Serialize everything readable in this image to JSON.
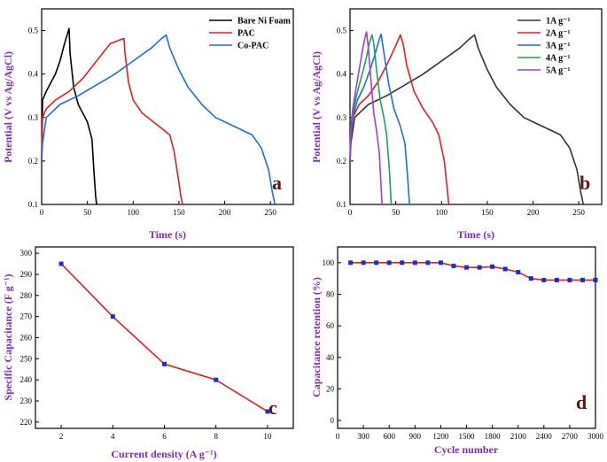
{
  "chart_data": [
    {
      "id": "a",
      "type": "line",
      "panel_label": "a",
      "xlabel": "Time (s)",
      "ylabel": "Potential (V vs Ag/AgCl)",
      "xlim": [
        0,
        275
      ],
      "ylim": [
        0.1,
        0.55
      ],
      "xticks": [
        0,
        50,
        100,
        150,
        200,
        250
      ],
      "yticks": [
        0.1,
        0.2,
        0.3,
        0.4,
        0.5
      ],
      "xtick_labels": [
        "0",
        "50",
        "100",
        "150",
        "200",
        "250"
      ],
      "ytick_labels": [
        "0.1",
        "0.2",
        "0.3",
        "0.4",
        "0.5"
      ],
      "legend_position": "top-right",
      "series": [
        {
          "name": "Bare Ni Foam",
          "color": "#000000",
          "x": [
            0,
            1,
            5,
            10,
            15,
            20,
            25,
            30,
            31,
            35,
            40,
            45,
            50,
            55,
            57,
            59,
            60
          ],
          "y": [
            0.2,
            0.34,
            0.36,
            0.38,
            0.4,
            0.43,
            0.47,
            0.505,
            0.45,
            0.37,
            0.33,
            0.31,
            0.29,
            0.25,
            0.18,
            0.12,
            0.1
          ]
        },
        {
          "name": "PAC",
          "color": "#e02020",
          "x": [
            0,
            1,
            5,
            15,
            30,
            45,
            60,
            75,
            90,
            91,
            95,
            100,
            110,
            125,
            140,
            145,
            150,
            152,
            154
          ],
          "y": [
            0.2,
            0.3,
            0.32,
            0.34,
            0.36,
            0.39,
            0.43,
            0.47,
            0.482,
            0.45,
            0.38,
            0.34,
            0.31,
            0.285,
            0.26,
            0.22,
            0.15,
            0.12,
            0.1
          ]
        },
        {
          "name": "Co-PAC",
          "color": "#1f6fd0",
          "x": [
            0,
            1,
            5,
            20,
            40,
            60,
            80,
            100,
            120,
            130,
            136,
            140,
            150,
            160,
            175,
            190,
            210,
            230,
            240,
            248,
            252,
            255
          ],
          "y": [
            0.2,
            0.24,
            0.3,
            0.33,
            0.35,
            0.375,
            0.4,
            0.43,
            0.46,
            0.48,
            0.49,
            0.46,
            0.41,
            0.37,
            0.33,
            0.3,
            0.28,
            0.26,
            0.23,
            0.18,
            0.13,
            0.1
          ]
        }
      ]
    },
    {
      "id": "b",
      "type": "line",
      "panel_label": "b",
      "xlabel": "Time (s)",
      "ylabel": "Potential (V vs Ag/AgCl)",
      "xlim": [
        0,
        275
      ],
      "ylim": [
        0.1,
        0.55
      ],
      "xticks": [
        0,
        50,
        100,
        150,
        200,
        250
      ],
      "yticks": [
        0.1,
        0.2,
        0.3,
        0.4,
        0.5
      ],
      "xtick_labels": [
        "0",
        "50",
        "100",
        "150",
        "200",
        "250"
      ],
      "ytick_labels": [
        "0.1",
        "0.2",
        "0.3",
        "0.4",
        "0.5"
      ],
      "legend_position": "top-right",
      "series": [
        {
          "name": "1A g⁻¹",
          "color": "#333333",
          "x": [
            0,
            1,
            5,
            20,
            40,
            60,
            80,
            100,
            120,
            130,
            136,
            140,
            150,
            160,
            175,
            190,
            210,
            230,
            240,
            248,
            252,
            255
          ],
          "y": [
            0.2,
            0.24,
            0.3,
            0.33,
            0.35,
            0.375,
            0.4,
            0.43,
            0.46,
            0.48,
            0.49,
            0.46,
            0.41,
            0.37,
            0.33,
            0.3,
            0.28,
            0.26,
            0.23,
            0.18,
            0.13,
            0.1
          ]
        },
        {
          "name": "2A g⁻¹",
          "color": "#e02020",
          "x": [
            0,
            1,
            3,
            10,
            20,
            30,
            40,
            50,
            55,
            58,
            62,
            70,
            80,
            90,
            97,
            103,
            106,
            108
          ],
          "y": [
            0.2,
            0.25,
            0.3,
            0.33,
            0.35,
            0.38,
            0.42,
            0.465,
            0.49,
            0.47,
            0.42,
            0.36,
            0.32,
            0.29,
            0.26,
            0.2,
            0.14,
            0.1
          ]
        },
        {
          "name": "3A g⁻¹",
          "color": "#1f6fd0",
          "x": [
            0,
            1,
            3,
            8,
            15,
            22,
            28,
            32,
            34,
            37,
            42,
            48,
            55,
            60,
            63,
            65
          ],
          "y": [
            0.2,
            0.26,
            0.3,
            0.34,
            0.37,
            0.41,
            0.45,
            0.48,
            0.492,
            0.45,
            0.38,
            0.32,
            0.28,
            0.24,
            0.16,
            0.1
          ]
        },
        {
          "name": "4A g⁻¹",
          "color": "#1fa05a",
          "x": [
            0,
            1,
            3,
            7,
            12,
            17,
            21,
            24,
            26,
            29,
            33,
            37,
            40,
            43,
            45
          ],
          "y": [
            0.2,
            0.27,
            0.31,
            0.35,
            0.39,
            0.43,
            0.47,
            0.49,
            0.47,
            0.41,
            0.34,
            0.3,
            0.26,
            0.18,
            0.1
          ]
        },
        {
          "name": "5A g⁻¹",
          "color": "#a040d0",
          "x": [
            0,
            1,
            3,
            6,
            10,
            14,
            17,
            18,
            20,
            23,
            26,
            29,
            32,
            34,
            35
          ],
          "y": [
            0.2,
            0.28,
            0.32,
            0.36,
            0.41,
            0.46,
            0.49,
            0.497,
            0.46,
            0.38,
            0.31,
            0.27,
            0.22,
            0.14,
            0.1
          ]
        }
      ]
    },
    {
      "id": "c",
      "type": "line",
      "panel_label": "c",
      "xlabel": "Current density (A g⁻¹)",
      "ylabel": "Specific Capacitance (F g⁻¹)",
      "xlim": [
        1,
        11
      ],
      "ylim": [
        217,
        303
      ],
      "xticks": [
        2,
        4,
        6,
        8,
        10
      ],
      "yticks": [
        220,
        230,
        240,
        250,
        260,
        270,
        280,
        290,
        300
      ],
      "xtick_labels": [
        "2",
        "4",
        "6",
        "8",
        "10"
      ],
      "ytick_labels": [
        "220",
        "230",
        "240",
        "250",
        "260",
        "270",
        "280",
        "290",
        "300"
      ],
      "series": [
        {
          "name": "Specific capacitance",
          "color": "#e02020",
          "marker_color": "#1a2fd0",
          "x": [
            2,
            4,
            6,
            8,
            10
          ],
          "y": [
            295,
            270,
            247.5,
            240,
            225
          ]
        }
      ]
    },
    {
      "id": "d",
      "type": "line",
      "panel_label": "d",
      "xlabel": "Cycle number",
      "ylabel": "Capacitance retention (%)",
      "xlim": [
        0,
        3000
      ],
      "ylim": [
        -5,
        110
      ],
      "xticks": [
        0,
        300,
        600,
        900,
        1200,
        1500,
        1800,
        2100,
        2400,
        2700,
        3000
      ],
      "yticks": [
        0,
        20,
        40,
        60,
        80,
        100
      ],
      "xtick_labels": [
        "0",
        "300",
        "600",
        "900",
        "1200",
        "1500",
        "1800",
        "2100",
        "2400",
        "2700",
        "3000"
      ],
      "ytick_labels": [
        "0",
        "20",
        "40",
        "60",
        "80",
        "100"
      ],
      "series": [
        {
          "name": "Capacitance retention",
          "color": "#e02020",
          "marker_color": "#1a2fd0",
          "x": [
            150,
            300,
            450,
            600,
            750,
            900,
            1050,
            1200,
            1350,
            1500,
            1650,
            1800,
            1950,
            2100,
            2250,
            2400,
            2550,
            2700,
            2850,
            3000
          ],
          "y": [
            100,
            100,
            100,
            100,
            100,
            100,
            100,
            100,
            98,
            97,
            97,
            97.5,
            96,
            94,
            90,
            89,
            89,
            89,
            89,
            89
          ]
        }
      ]
    }
  ]
}
